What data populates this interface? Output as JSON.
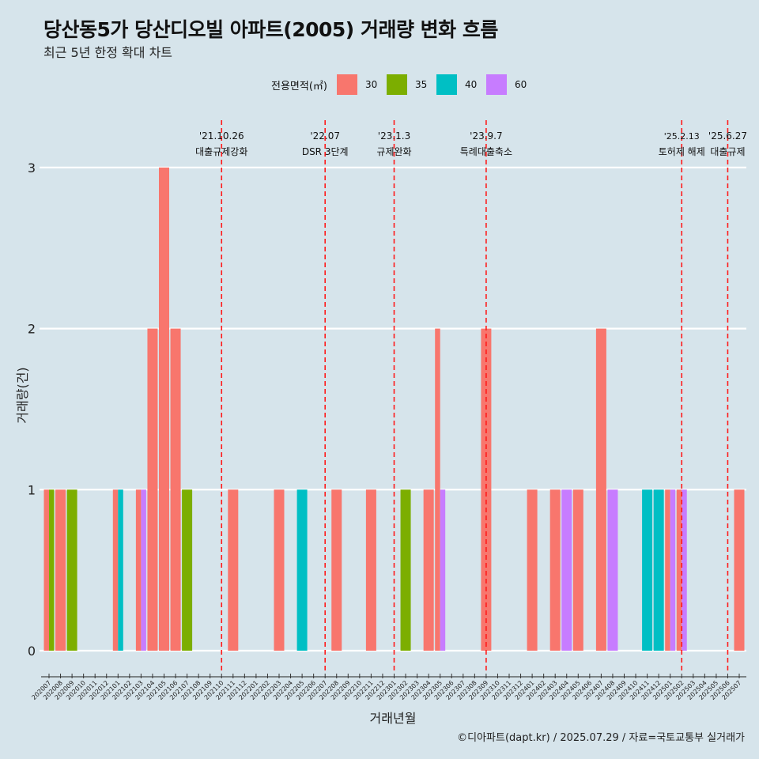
{
  "title": "당산동5가 당산디오빌 아파트(2005) 거래량 변화 흐름",
  "subtitle": "최근 5년 한정 확대 차트",
  "caption": "©디아파트(dapt.kr) / 2025.07.29 / 자료=국토교통부 실거래가",
  "legend": {
    "title": "전용면적(㎡)",
    "items": [
      {
        "label": "30",
        "color": "#f8766d"
      },
      {
        "label": "35",
        "color": "#7cae00"
      },
      {
        "label": "40",
        "color": "#00bfc4"
      },
      {
        "label": "60",
        "color": "#c77cff"
      }
    ]
  },
  "chart_data": {
    "type": "bar",
    "xlabel": "거래년월",
    "ylabel": "거래량(건)",
    "ylim": [
      0,
      3
    ],
    "yticks": [
      "0",
      "1",
      "2",
      "3"
    ],
    "grid": true,
    "legend_position": "top",
    "categories": [
      "202007",
      "202008",
      "202009",
      "202010",
      "202011",
      "202012",
      "202101",
      "202102",
      "202103",
      "202104",
      "202105",
      "202106",
      "202107",
      "202108",
      "202109",
      "202110",
      "202111",
      "202112",
      "202201",
      "202202",
      "202203",
      "202204",
      "202205",
      "202206",
      "202207",
      "202208",
      "202209",
      "202210",
      "202211",
      "202212",
      "202301",
      "202302",
      "202303",
      "202304",
      "202305",
      "202306",
      "202307",
      "202308",
      "202309",
      "202310",
      "202311",
      "202312",
      "202401",
      "202402",
      "202403",
      "202404",
      "202405",
      "202406",
      "202407",
      "202408",
      "202409",
      "202410",
      "202411",
      "202412",
      "202501",
      "202502",
      "202503",
      "202504",
      "202505",
      "202506",
      "202507"
    ],
    "series": [
      {
        "name": "30",
        "color": "#f8766d",
        "values": [
          1,
          1,
          0,
          0,
          0,
          0,
          1,
          0,
          1,
          2,
          3,
          2,
          0,
          0,
          0,
          0,
          1,
          0,
          0,
          0,
          1,
          0,
          0,
          0,
          0,
          1,
          0,
          0,
          1,
          0,
          0,
          0,
          0,
          1,
          2,
          0,
          0,
          0,
          2,
          0,
          0,
          0,
          1,
          0,
          1,
          0,
          1,
          0,
          2,
          0,
          0,
          0,
          0,
          0,
          1,
          1,
          0,
          0,
          0,
          0,
          1
        ]
      },
      {
        "name": "35",
        "color": "#7cae00",
        "values": [
          1,
          0,
          1,
          0,
          0,
          0,
          0,
          0,
          0,
          0,
          0,
          0,
          1,
          0,
          0,
          0,
          0,
          0,
          0,
          0,
          0,
          0,
          0,
          0,
          0,
          0,
          0,
          0,
          0,
          0,
          0,
          1,
          0,
          0,
          0,
          0,
          0,
          0,
          0,
          0,
          0,
          0,
          0,
          0,
          0,
          0,
          0,
          0,
          0,
          0,
          0,
          0,
          0,
          0,
          0,
          0,
          0,
          0,
          0,
          0,
          0
        ]
      },
      {
        "name": "40",
        "color": "#00bfc4",
        "values": [
          0,
          0,
          0,
          0,
          0,
          0,
          1,
          0,
          0,
          0,
          0,
          0,
          0,
          0,
          0,
          0,
          0,
          0,
          0,
          0,
          0,
          0,
          1,
          0,
          0,
          0,
          0,
          0,
          0,
          0,
          0,
          0,
          0,
          0,
          0,
          0,
          0,
          0,
          0,
          0,
          0,
          0,
          0,
          0,
          0,
          0,
          0,
          0,
          0,
          0,
          0,
          0,
          1,
          1,
          0,
          0,
          0,
          0,
          0,
          0,
          0
        ]
      },
      {
        "name": "60",
        "color": "#c77cff",
        "values": [
          0,
          0,
          0,
          0,
          0,
          0,
          0,
          0,
          1,
          0,
          0,
          0,
          0,
          0,
          0,
          0,
          0,
          0,
          0,
          0,
          0,
          0,
          0,
          0,
          0,
          0,
          0,
          0,
          0,
          0,
          0,
          0,
          0,
          0,
          1,
          0,
          0,
          0,
          0,
          0,
          0,
          0,
          0,
          0,
          0,
          1,
          0,
          0,
          0,
          1,
          0,
          0,
          0,
          0,
          1,
          1,
          0,
          0,
          0,
          0,
          0
        ]
      }
    ],
    "annotations": [
      {
        "x": "202110",
        "date": "'21.10.26",
        "text": "대출규제강화"
      },
      {
        "x": "202207",
        "date": "'22.07",
        "text": "DSR 3단계"
      },
      {
        "x": "202301",
        "date": "'23.1.3",
        "text": "규제완화"
      },
      {
        "x": "202309",
        "date": "'23.9.7",
        "text": "특례대출축소"
      },
      {
        "x": "202502",
        "date": "'25.2.13",
        "text": "토허제 해제"
      },
      {
        "x": "202506",
        "date": "'25.6.27",
        "text": "대출규제"
      }
    ]
  }
}
